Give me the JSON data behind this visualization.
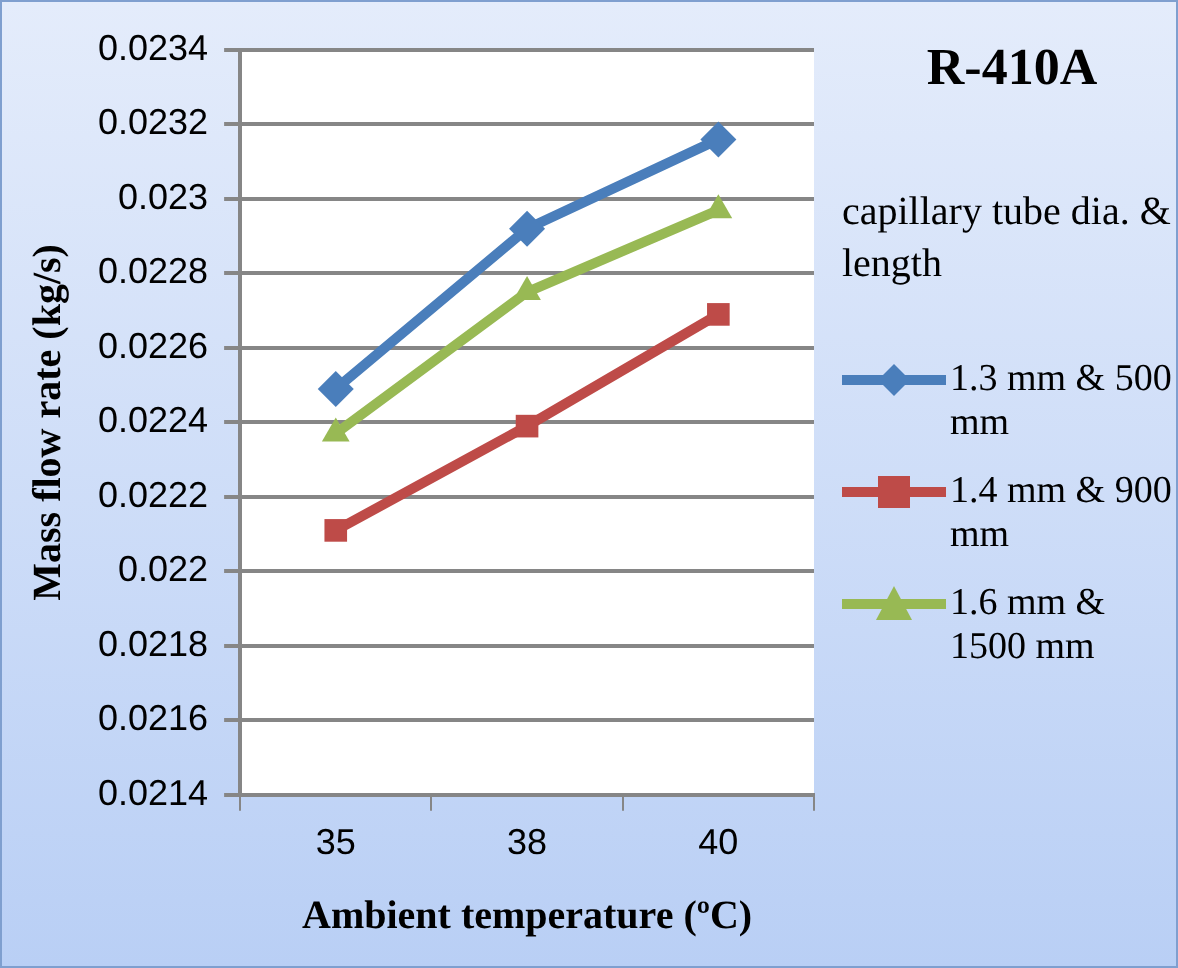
{
  "chart_data": {
    "type": "line",
    "title": "R-410A",
    "xlabel": "Ambient temperature (ºC)",
    "ylabel": "Mass flow rate (kg/s)",
    "legend_title": "capillary tube dia. & length",
    "categories": [
      "35",
      "38",
      "40"
    ],
    "series": [
      {
        "name": "1.3 mm & 500 mm",
        "color": "#4a7ebb",
        "marker": "diamond",
        "values": [
          0.02249,
          0.02292,
          0.02316
        ]
      },
      {
        "name": "1.4 mm & 900 mm",
        "color": "#be4b48",
        "marker": "square",
        "values": [
          0.02211,
          0.02239,
          0.02269
        ]
      },
      {
        "name": "1.6 mm & 1500 mm",
        "color": "#98b954",
        "marker": "triangle",
        "values": [
          0.02237,
          0.02275,
          0.02297
        ]
      }
    ],
    "ylim": [
      0.0214,
      0.0234
    ],
    "yticks": [
      0.0214,
      0.0216,
      0.0218,
      0.022,
      0.0222,
      0.0224,
      0.0226,
      0.0228,
      0.023,
      0.0232,
      0.0234
    ],
    "grid": "y",
    "legend": "right",
    "line_style": "solid"
  }
}
